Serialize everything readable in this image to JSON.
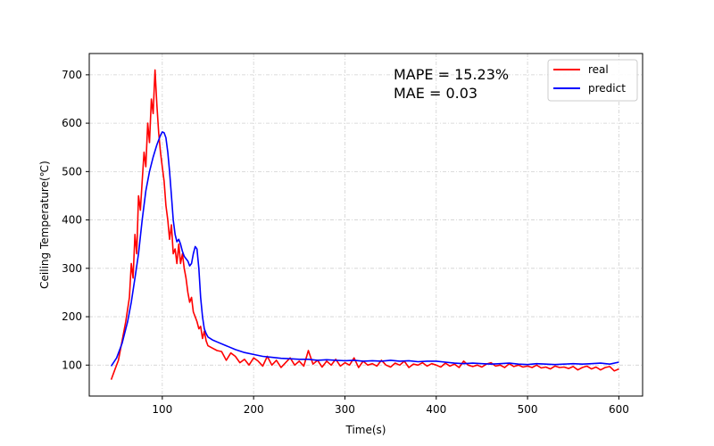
{
  "chart_data": {
    "type": "line",
    "title": "",
    "xlabel": "Time(s)",
    "ylabel": "Ceiling Temperature(℃)",
    "xlim": [
      20,
      626
    ],
    "ylim": [
      36,
      744
    ],
    "x_ticks": [
      100,
      200,
      300,
      400,
      500,
      600
    ],
    "y_ticks": [
      100,
      200,
      300,
      400,
      500,
      600,
      700
    ],
    "grid": true,
    "legend_position": "upper right",
    "annotations": [
      "MAPE = 15.23%",
      "MAE = 0.03"
    ],
    "series": [
      {
        "name": "real",
        "color": "#ff0000",
        "x": [
          44,
          48,
          52,
          56,
          60,
          64,
          66,
          68,
          70,
          72,
          74,
          76,
          78,
          80,
          82,
          84,
          86,
          88,
          90,
          92,
          94,
          96,
          98,
          100,
          102,
          104,
          106,
          108,
          110,
          112,
          114,
          116,
          118,
          120,
          122,
          124,
          126,
          128,
          130,
          132,
          134,
          136,
          138,
          140,
          142,
          144,
          146,
          148,
          150,
          155,
          160,
          165,
          170,
          175,
          180,
          185,
          190,
          195,
          200,
          205,
          210,
          215,
          220,
          225,
          230,
          235,
          240,
          245,
          250,
          255,
          260,
          265,
          270,
          275,
          280,
          285,
          290,
          295,
          300,
          305,
          310,
          315,
          320,
          325,
          330,
          335,
          340,
          345,
          350,
          355,
          360,
          365,
          370,
          375,
          380,
          385,
          390,
          395,
          400,
          405,
          410,
          415,
          420,
          425,
          430,
          435,
          440,
          445,
          450,
          455,
          460,
          465,
          470,
          475,
          480,
          485,
          490,
          495,
          500,
          505,
          510,
          515,
          520,
          525,
          530,
          535,
          540,
          545,
          550,
          555,
          560,
          565,
          570,
          575,
          580,
          585,
          590,
          595,
          600
        ],
        "values": [
          70,
          90,
          110,
          150,
          190,
          240,
          310,
          280,
          370,
          330,
          450,
          420,
          480,
          540,
          510,
          600,
          560,
          650,
          620,
          710,
          640,
          580,
          540,
          510,
          480,
          430,
          400,
          360,
          390,
          330,
          340,
          310,
          350,
          310,
          330,
          300,
          280,
          250,
          230,
          240,
          210,
          200,
          190,
          175,
          180,
          155,
          170,
          150,
          140,
          135,
          130,
          128,
          110,
          125,
          118,
          105,
          112,
          100,
          115,
          108,
          98,
          118,
          100,
          110,
          95,
          105,
          115,
          100,
          108,
          98,
          130,
          102,
          110,
          96,
          108,
          100,
          112,
          98,
          105,
          100,
          115,
          95,
          108,
          100,
          103,
          98,
          110,
          100,
          96,
          104,
          100,
          108,
          95,
          102,
          100,
          105,
          98,
          103,
          100,
          96,
          104,
          98,
          102,
          95,
          108,
          100,
          97,
          100,
          96,
          102,
          105,
          98,
          100,
          95,
          103,
          97,
          100,
          96,
          98,
          95,
          100,
          94,
          96,
          92,
          98,
          95,
          96,
          93,
          97,
          90,
          95,
          98,
          92,
          96,
          90,
          95,
          97,
          88,
          92
        ]
      },
      {
        "name": "predict",
        "color": "#0000ff",
        "x": [
          44,
          50,
          56,
          62,
          66,
          70,
          74,
          78,
          82,
          86,
          90,
          94,
          98,
          100,
          102,
          104,
          106,
          108,
          110,
          112,
          114,
          116,
          118,
          120,
          122,
          124,
          126,
          128,
          130,
          132,
          134,
          136,
          138,
          140,
          142,
          144,
          146,
          148,
          150,
          155,
          160,
          170,
          180,
          190,
          200,
          210,
          220,
          230,
          240,
          250,
          260,
          270,
          280,
          290,
          300,
          310,
          320,
          330,
          340,
          350,
          360,
          370,
          380,
          390,
          400,
          410,
          420,
          430,
          440,
          450,
          460,
          470,
          480,
          490,
          500,
          510,
          520,
          530,
          540,
          550,
          560,
          570,
          580,
          590,
          600
        ],
        "values": [
          98,
          115,
          145,
          190,
          230,
          280,
          330,
          400,
          460,
          500,
          530,
          555,
          575,
          582,
          580,
          570,
          540,
          500,
          450,
          400,
          370,
          355,
          360,
          350,
          335,
          325,
          320,
          315,
          305,
          310,
          330,
          345,
          340,
          300,
          240,
          200,
          175,
          165,
          158,
          152,
          148,
          140,
          132,
          126,
          122,
          118,
          116,
          114,
          113,
          112,
          112,
          110,
          111,
          110,
          109,
          110,
          108,
          109,
          108,
          110,
          108,
          109,
          107,
          108,
          108,
          106,
          104,
          103,
          104,
          103,
          102,
          103,
          104,
          102,
          101,
          103,
          102,
          101,
          102,
          103,
          102,
          103,
          104,
          102,
          106
        ]
      }
    ]
  }
}
